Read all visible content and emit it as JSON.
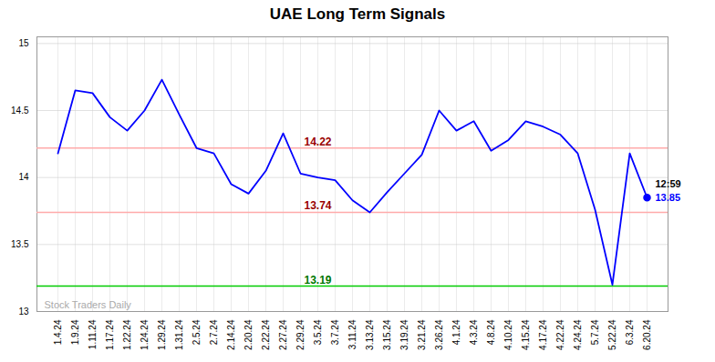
{
  "chart_data": {
    "type": "line",
    "title": "UAE Long Term Signals",
    "color": "blue",
    "ylim": [
      13.0,
      15.05
    ],
    "yticks": [
      13,
      13.5,
      14,
      14.5,
      15
    ],
    "grid": true,
    "categories": [
      "1.4.24",
      "1.9.24",
      "1.11.24",
      "1.17.24",
      "1.22.24",
      "1.24.24",
      "1.29.24",
      "1.31.24",
      "2.5.24",
      "2.7.24",
      "2.14.24",
      "2.20.24",
      "2.22.24",
      "2.27.24",
      "2.29.24",
      "3.5.24",
      "3.7.24",
      "3.11.24",
      "3.13.24",
      "3.15.24",
      "3.19.24",
      "3.21.24",
      "3.26.24",
      "4.1.24",
      "4.3.24",
      "4.8.24",
      "4.10.24",
      "4.15.24",
      "4.17.24",
      "4.22.24",
      "4.24.24",
      "5.7.24",
      "5.22.24",
      "6.3.24",
      "6.20.24"
    ],
    "values": [
      14.18,
      14.65,
      14.63,
      14.45,
      14.35,
      14.5,
      14.73,
      14.47,
      14.22,
      14.18,
      13.95,
      13.88,
      14.05,
      14.33,
      14.03,
      14.0,
      13.98,
      13.83,
      13.74,
      13.89,
      14.03,
      14.17,
      14.5,
      14.35,
      14.42,
      14.2,
      14.28,
      14.42,
      14.38,
      14.32,
      14.18,
      13.76,
      13.2,
      14.18,
      13.85
    ],
    "hlines": [
      {
        "y": 14.22,
        "color": "#ffaaaa",
        "label": "14.22",
        "label_color": "#990000"
      },
      {
        "y": 13.74,
        "color": "#ffaaaa",
        "label": "13.74",
        "label_color": "#990000"
      },
      {
        "y": 13.19,
        "color": "#00cc00",
        "label": "13.19",
        "label_color": "#007700"
      }
    ],
    "annotations": [
      {
        "text": "12:59",
        "x": "6.20.24",
        "y": 13.85,
        "color": "black"
      },
      {
        "text": "13.85",
        "x": "6.20.24",
        "y": 13.85,
        "color": "blue",
        "marker": "circle"
      }
    ],
    "watermark": {
      "text": "Stock Traders Daily",
      "color": "#aaaaaa"
    }
  }
}
